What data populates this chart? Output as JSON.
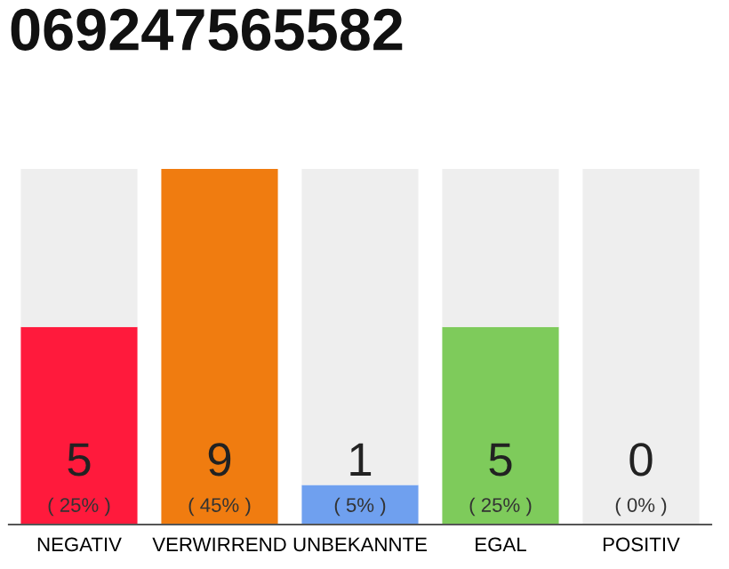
{
  "chart_data": {
    "type": "bar",
    "title": "069247565582",
    "stacked": true,
    "categories": [
      "NEGATIV",
      "VERWIRREND",
      "UNBEKANNTE",
      "EGAL",
      "POSITIV"
    ],
    "series": [
      {
        "colors": [
          "#ff1a3c",
          "#f07c10",
          "#6fa0ef",
          "#7ecb5b",
          "#dddddd"
        ],
        "values": [
          5,
          9,
          1,
          5,
          0
        ],
        "value_labels": [
          "5",
          "9",
          "1",
          "5",
          null
        ]
      },
      {
        "color": "#eeeeee",
        "values": [
          4,
          0,
          8,
          4,
          9
        ]
      }
    ],
    "ylim": [
      0,
      9
    ],
    "annotations": [
      {
        "text": "0",
        "x": "POSITIV",
        "y": 0
      },
      {
        "text": "( 25% )",
        "x": "NEGATIV",
        "y": 0
      },
      {
        "text": "( 45% )",
        "x": "VERWIRREND",
        "y": 0
      },
      {
        "text": "( 5% )",
        "x": "UNBEKANNTE",
        "y": 0
      },
      {
        "text": "( 25% )",
        "x": "EGAL",
        "y": 0
      },
      {
        "text": "( 0% )",
        "x": "POSITIV",
        "y": 0
      }
    ],
    "grid": false,
    "legend": false
  }
}
